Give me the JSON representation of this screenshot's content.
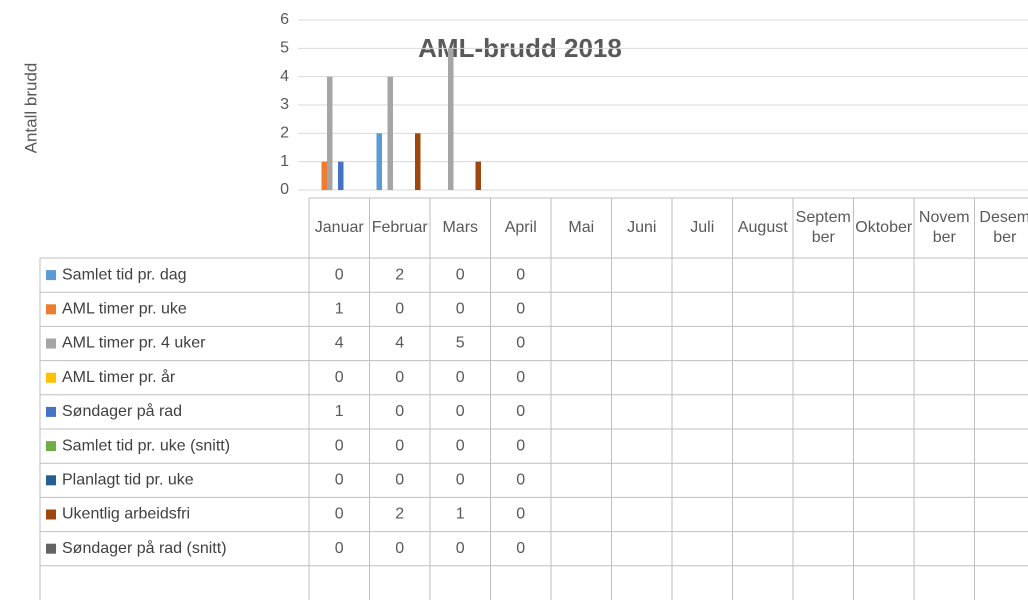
{
  "chart_data": {
    "type": "bar",
    "title": "AML-brudd 2018",
    "y_label": "Antall brudd",
    "categories": [
      "Januar",
      "Februar",
      "Mars",
      "April",
      "Mai",
      "Juni",
      "Juli",
      "August",
      "September",
      "Oktober",
      "November",
      "Desember"
    ],
    "series": [
      {
        "name": "Samlet tid pr. dag",
        "color": "#5b9bd5",
        "values": [
          0,
          2,
          0,
          0,
          null,
          null,
          null,
          null,
          null,
          null,
          null,
          null
        ]
      },
      {
        "name": "AML timer pr. uke",
        "color": "#ed7d31",
        "values": [
          1,
          0,
          0,
          0,
          null,
          null,
          null,
          null,
          null,
          null,
          null,
          null
        ]
      },
      {
        "name": "AML timer pr. 4 uker",
        "color": "#a5a5a5",
        "values": [
          4,
          4,
          5,
          0,
          null,
          null,
          null,
          null,
          null,
          null,
          null,
          null
        ]
      },
      {
        "name": "AML timer pr. år",
        "color": "#ffc000",
        "values": [
          0,
          0,
          0,
          0,
          null,
          null,
          null,
          null,
          null,
          null,
          null,
          null
        ]
      },
      {
        "name": "Søndager på rad",
        "color": "#4472c4",
        "values": [
          1,
          0,
          0,
          0,
          null,
          null,
          null,
          null,
          null,
          null,
          null,
          null
        ]
      },
      {
        "name": "Samlet tid pr. uke (snitt)",
        "color": "#70ad47",
        "values": [
          0,
          0,
          0,
          0,
          null,
          null,
          null,
          null,
          null,
          null,
          null,
          null
        ]
      },
      {
        "name": "Planlagt tid pr. uke",
        "color": "#255e91",
        "values": [
          0,
          0,
          0,
          0,
          null,
          null,
          null,
          null,
          null,
          null,
          null,
          null
        ]
      },
      {
        "name": "Ukentlig arbeidsfri",
        "color": "#9e480e",
        "values": [
          0,
          2,
          1,
          0,
          null,
          null,
          null,
          null,
          null,
          null,
          null,
          null
        ]
      },
      {
        "name": "Søndager på rad (snitt)",
        "color": "#636363",
        "values": [
          0,
          0,
          0,
          0,
          null,
          null,
          null,
          null,
          null,
          null,
          null,
          null
        ]
      }
    ],
    "ylim": [
      0,
      6
    ],
    "yticks": [
      0,
      1,
      2,
      3,
      4,
      5,
      6
    ],
    "grid": true
  }
}
